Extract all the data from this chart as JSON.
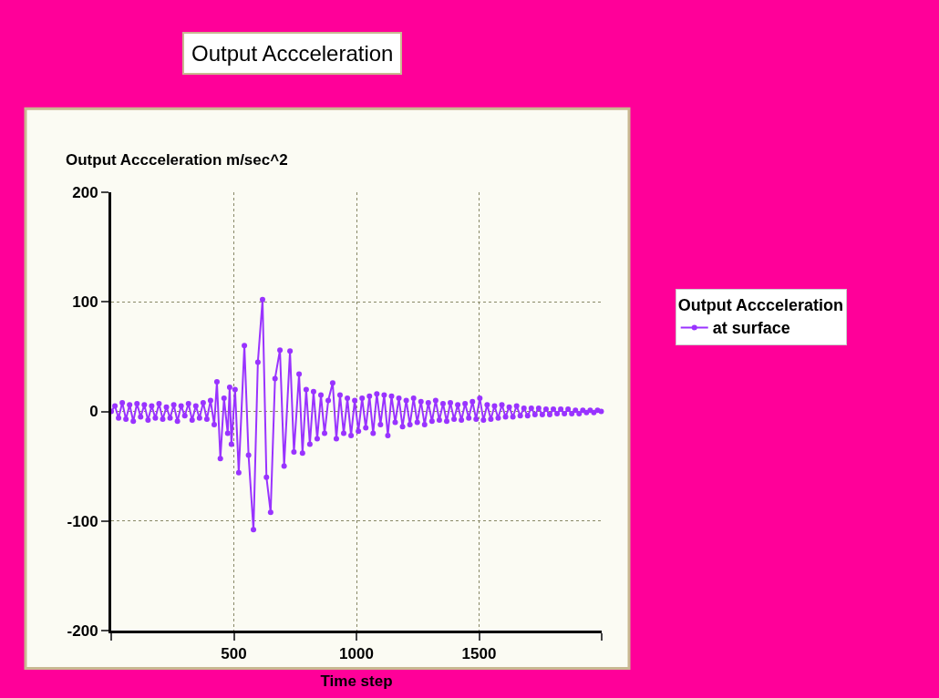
{
  "chart_data": {
    "type": "line",
    "title": "Output Accceleration",
    "ylabel": "Output Accceleration m/sec^2",
    "xlabel": "Time step",
    "legend_title": "Output Accceleration",
    "xlim": [
      0,
      2000
    ],
    "xticks": [
      {
        "value": 0,
        "label": null
      },
      500,
      1000,
      1500,
      {
        "value": 2000,
        "label": null
      }
    ],
    "ylim": [
      -200,
      200
    ],
    "yticks": [
      -200,
      -100,
      0,
      100,
      200
    ],
    "grid": true,
    "legend": "right",
    "marker": "circle",
    "line_style": "solid",
    "x": [
      0,
      15,
      30,
      45,
      60,
      75,
      90,
      105,
      120,
      135,
      150,
      165,
      180,
      195,
      210,
      225,
      240,
      255,
      270,
      285,
      300,
      315,
      330,
      345,
      360,
      375,
      390,
      405,
      420,
      431,
      445,
      460,
      475,
      483,
      490,
      505,
      520,
      543,
      560,
      580,
      598,
      617,
      633,
      650,
      668,
      688,
      705,
      729,
      745,
      766,
      780,
      795,
      810,
      825,
      840,
      855,
      870,
      885,
      903,
      918,
      933,
      948,
      963,
      978,
      993,
      1008,
      1023,
      1038,
      1053,
      1068,
      1083,
      1098,
      1113,
      1128,
      1143,
      1158,
      1173,
      1188,
      1203,
      1218,
      1233,
      1248,
      1263,
      1278,
      1293,
      1308,
      1323,
      1338,
      1353,
      1368,
      1383,
      1398,
      1413,
      1428,
      1443,
      1458,
      1473,
      1488,
      1503,
      1518,
      1533,
      1548,
      1563,
      1578,
      1593,
      1608,
      1623,
      1638,
      1653,
      1668,
      1683,
      1698,
      1713,
      1728,
      1743,
      1758,
      1773,
      1788,
      1803,
      1818,
      1833,
      1848,
      1863,
      1878,
      1893,
      1908,
      1923,
      1938,
      1953,
      1968,
      1983,
      1998
    ],
    "series": [
      {
        "name": "at surface",
        "color": "#9933ff",
        "values": [
          0,
          5,
          -6,
          8,
          -7,
          6,
          -9,
          7,
          -5,
          6,
          -8,
          5,
          -6,
          7,
          -7,
          4,
          -6,
          6,
          -9,
          5,
          -4,
          7,
          -8,
          5,
          -6,
          8,
          -7,
          10,
          -12,
          27,
          -43,
          12,
          -20,
          22,
          -30,
          20,
          -56,
          60,
          -40,
          -108,
          45,
          102,
          -60,
          -92,
          30,
          56,
          -50,
          55,
          -37,
          34,
          -38,
          20,
          -30,
          18,
          -25,
          15,
          -20,
          10,
          26,
          -25,
          15,
          -20,
          12,
          -22,
          10,
          -18,
          12,
          -15,
          14,
          -20,
          16,
          -12,
          15,
          -22,
          14,
          -10,
          12,
          -14,
          10,
          -12,
          12,
          -10,
          9,
          -12,
          8,
          -9,
          10,
          -8,
          7,
          -9,
          8,
          -7,
          6,
          -8,
          7,
          -6,
          9,
          -7,
          12,
          -8,
          6,
          -7,
          5,
          -6,
          6,
          -5,
          4,
          -5,
          5,
          -4,
          3,
          -4,
          3,
          -3,
          3,
          -3,
          2,
          -3,
          2,
          -2,
          2,
          -2,
          2,
          -2,
          1,
          -2,
          1,
          -1,
          1,
          -1,
          1,
          0
        ]
      }
    ]
  }
}
